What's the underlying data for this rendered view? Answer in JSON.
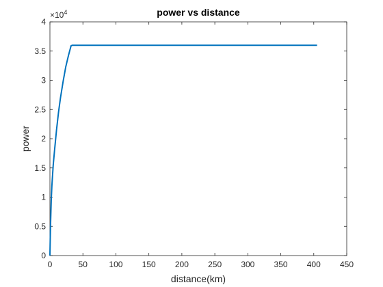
{
  "chart_data": {
    "type": "line",
    "title": "power vs distance",
    "xlabel": "distance(km)",
    "ylabel": "power",
    "xlim": [
      0,
      450
    ],
    "ylim": [
      0,
      40000
    ],
    "x_ticks": [
      0,
      50,
      100,
      150,
      200,
      250,
      300,
      350,
      400,
      450
    ],
    "x_tick_labels": [
      "0",
      "50",
      "100",
      "150",
      "200",
      "250",
      "300",
      "350",
      "400",
      "450"
    ],
    "y_ticks": [
      0,
      5000,
      10000,
      15000,
      20000,
      25000,
      30000,
      35000,
      40000
    ],
    "y_tick_labels": [
      "0",
      "0.5",
      "1",
      "1.5",
      "2",
      "2.5",
      "3",
      "3.5",
      "4"
    ],
    "y_exponent_base": "×10",
    "y_exponent_power": "4",
    "grid": false,
    "series": [
      {
        "color": "#0072BD",
        "x": [
          0,
          0.5,
          1,
          2,
          3,
          5,
          7,
          10,
          13,
          16,
          20,
          24,
          28,
          32,
          34,
          35,
          36,
          405
        ],
        "y": [
          0,
          3000,
          5500,
          9500,
          12000,
          15500,
          18000,
          21500,
          24500,
          27000,
          29800,
          32300,
          34200,
          35900,
          36000,
          36000,
          36000,
          36000
        ]
      }
    ]
  }
}
